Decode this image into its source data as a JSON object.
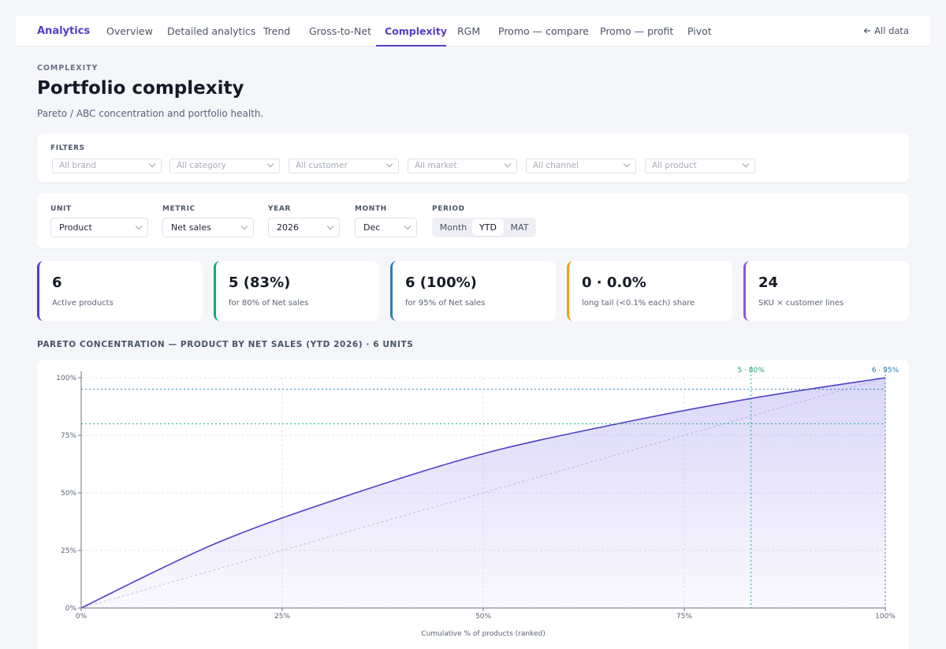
{
  "nav": {
    "brand": "Analytics",
    "tabs": [
      {
        "label": "Overview"
      },
      {
        "label": "Detailed analytics"
      },
      {
        "label": "Trend"
      },
      {
        "label": "Gross-to-Net"
      },
      {
        "label": "Complexity"
      },
      {
        "label": "RGM"
      },
      {
        "label": "Promo — compare"
      },
      {
        "label": "Promo — profit"
      },
      {
        "label": "Pivot"
      }
    ],
    "active_tab": "Complexity",
    "back_label": "All data"
  },
  "page": {
    "eyebrow": "COMPLEXITY",
    "title": "Portfolio complexity",
    "subtitle": "Pareto / ABC concentration and portfolio health."
  },
  "filters": {
    "label": "FILTERS",
    "placeholders": [
      "All brand",
      "All category",
      "All customer",
      "All market",
      "All channel",
      "All product"
    ]
  },
  "controls": {
    "unit": {
      "label": "UNIT",
      "value": "Product"
    },
    "metric": {
      "label": "METRIC",
      "value": "Net sales"
    },
    "year": {
      "label": "YEAR",
      "value": "2026"
    },
    "month": {
      "label": "MONTH",
      "value": "Dec"
    },
    "period": {
      "label": "PERIOD",
      "options": [
        "Month",
        "YTD",
        "MAT"
      ],
      "selected": "YTD"
    }
  },
  "kpis": [
    {
      "value": "6",
      "label": "Active products",
      "color": "#4f3fc8"
    },
    {
      "value": "5 (83%)",
      "label": "for 80% of Net sales",
      "color": "#1aa67a"
    },
    {
      "value": "6 (100%)",
      "label": "for 95% of Net sales",
      "color": "#2f7db3"
    },
    {
      "value": "0 · 0.0%",
      "label": "long tail (<0.1% each) share",
      "color": "#f2a20c"
    },
    {
      "value": "24",
      "label": "SKU × customer lines",
      "color": "#8a57d6"
    }
  ],
  "chart_title": "PARETO CONCENTRATION — PRODUCT BY NET SALES (YTD 2026) · 6 UNITS",
  "chart_data": {
    "type": "area",
    "title": "PARETO CONCENTRATION — PRODUCT BY NET SALES (YTD 2026) · 6 UNITS",
    "xlabel": "Cumulative % of products (ranked)",
    "ylabel": "",
    "x": [
      0,
      16.7,
      33.3,
      50,
      66.7,
      83.3,
      100
    ],
    "y": [
      0,
      28,
      49,
      67,
      80,
      91,
      100
    ],
    "xlim": [
      0,
      100
    ],
    "ylim": [
      0,
      100
    ],
    "x_ticks": [
      "0%",
      "25%",
      "50%",
      "75%",
      "100%"
    ],
    "y_ticks": [
      "0%",
      "25%",
      "50%",
      "75%",
      "100%"
    ],
    "reference_lines": [
      {
        "label": "5 · 80%",
        "x": 83.3,
        "y": 80,
        "color": "#1aa67a"
      },
      {
        "label": "6 · 95%",
        "x": 100,
        "y": 95,
        "color": "#2f7db3"
      }
    ],
    "series": [
      {
        "values": [
          0,
          28,
          49,
          67,
          80,
          91,
          100
        ],
        "color": "#4f3fc8"
      }
    ],
    "grid": true
  }
}
